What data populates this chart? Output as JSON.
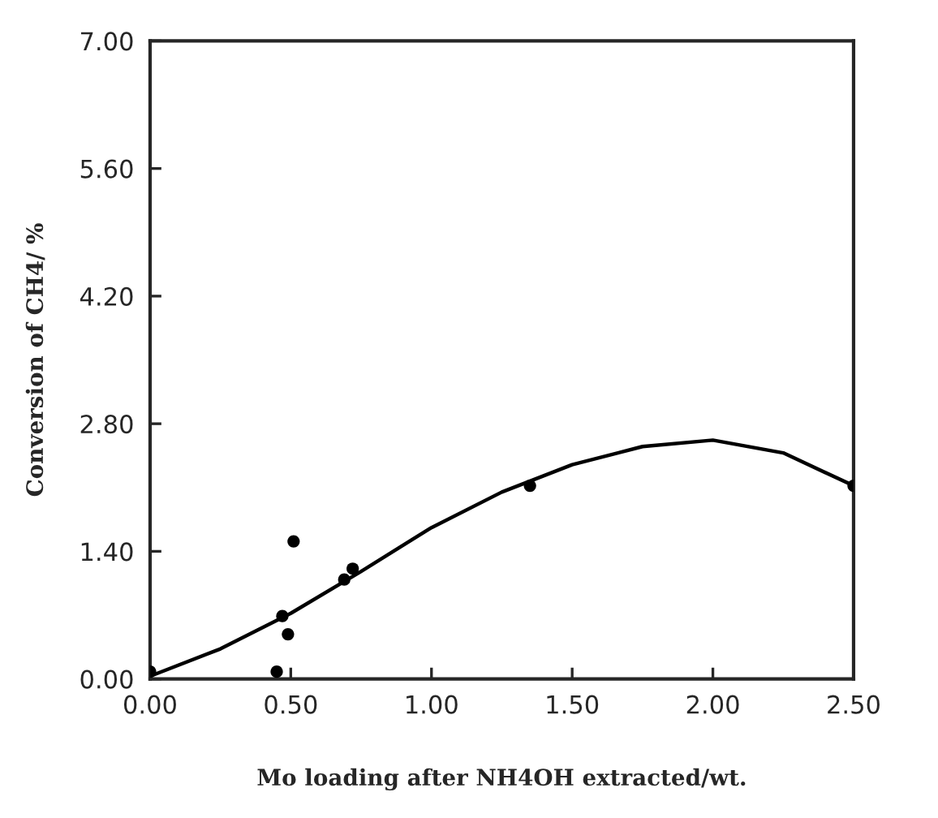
{
  "chart_data": {
    "type": "scatter",
    "xlabel": "Mo loading after NH4OH extracted/wt.",
    "ylabel": "Conversion of CH4/ %",
    "marker": "circle",
    "grid": false,
    "legend": false,
    "xlim": [
      0,
      2.5
    ],
    "ylim": [
      0,
      7
    ],
    "xticks": [
      {
        "value": 0,
        "label": "0.00"
      },
      {
        "value": 0.5,
        "label": "0.50"
      },
      {
        "value": 1,
        "label": "1.00"
      },
      {
        "value": 1.5,
        "label": "1.50"
      },
      {
        "value": 2,
        "label": "2.00"
      },
      {
        "value": 2.5,
        "label": "2.50"
      }
    ],
    "yticks": [
      {
        "value": 0,
        "label": "0.00"
      },
      {
        "value": 1.4,
        "label": "1.40"
      },
      {
        "value": 2.8,
        "label": "2.80"
      },
      {
        "value": 4.2,
        "label": "4.20"
      },
      {
        "value": 5.6,
        "label": "5.60"
      },
      {
        "value": 7,
        "label": "7.00"
      }
    ],
    "series": [
      {
        "color": "#000000",
        "x": [
          0,
          0.45,
          0.47,
          0.49,
          0.51,
          0.69,
          0.72,
          1.35,
          2.5
        ],
        "values": [
          0.08,
          0.08,
          0.69,
          0.49,
          1.51,
          1.09,
          1.21,
          2.12,
          2.12
        ]
      },
      {
        "type": "line",
        "color": "#000000",
        "marker": "none",
        "x": [
          0,
          0.25,
          0.5,
          0.75,
          1.0,
          1.25,
          1.5,
          1.75,
          2.0,
          2.25,
          2.5
        ],
        "values": [
          0.03,
          0.33,
          0.72,
          1.18,
          1.66,
          2.05,
          2.35,
          2.55,
          2.62,
          2.48,
          2.12
        ]
      }
    ]
  }
}
